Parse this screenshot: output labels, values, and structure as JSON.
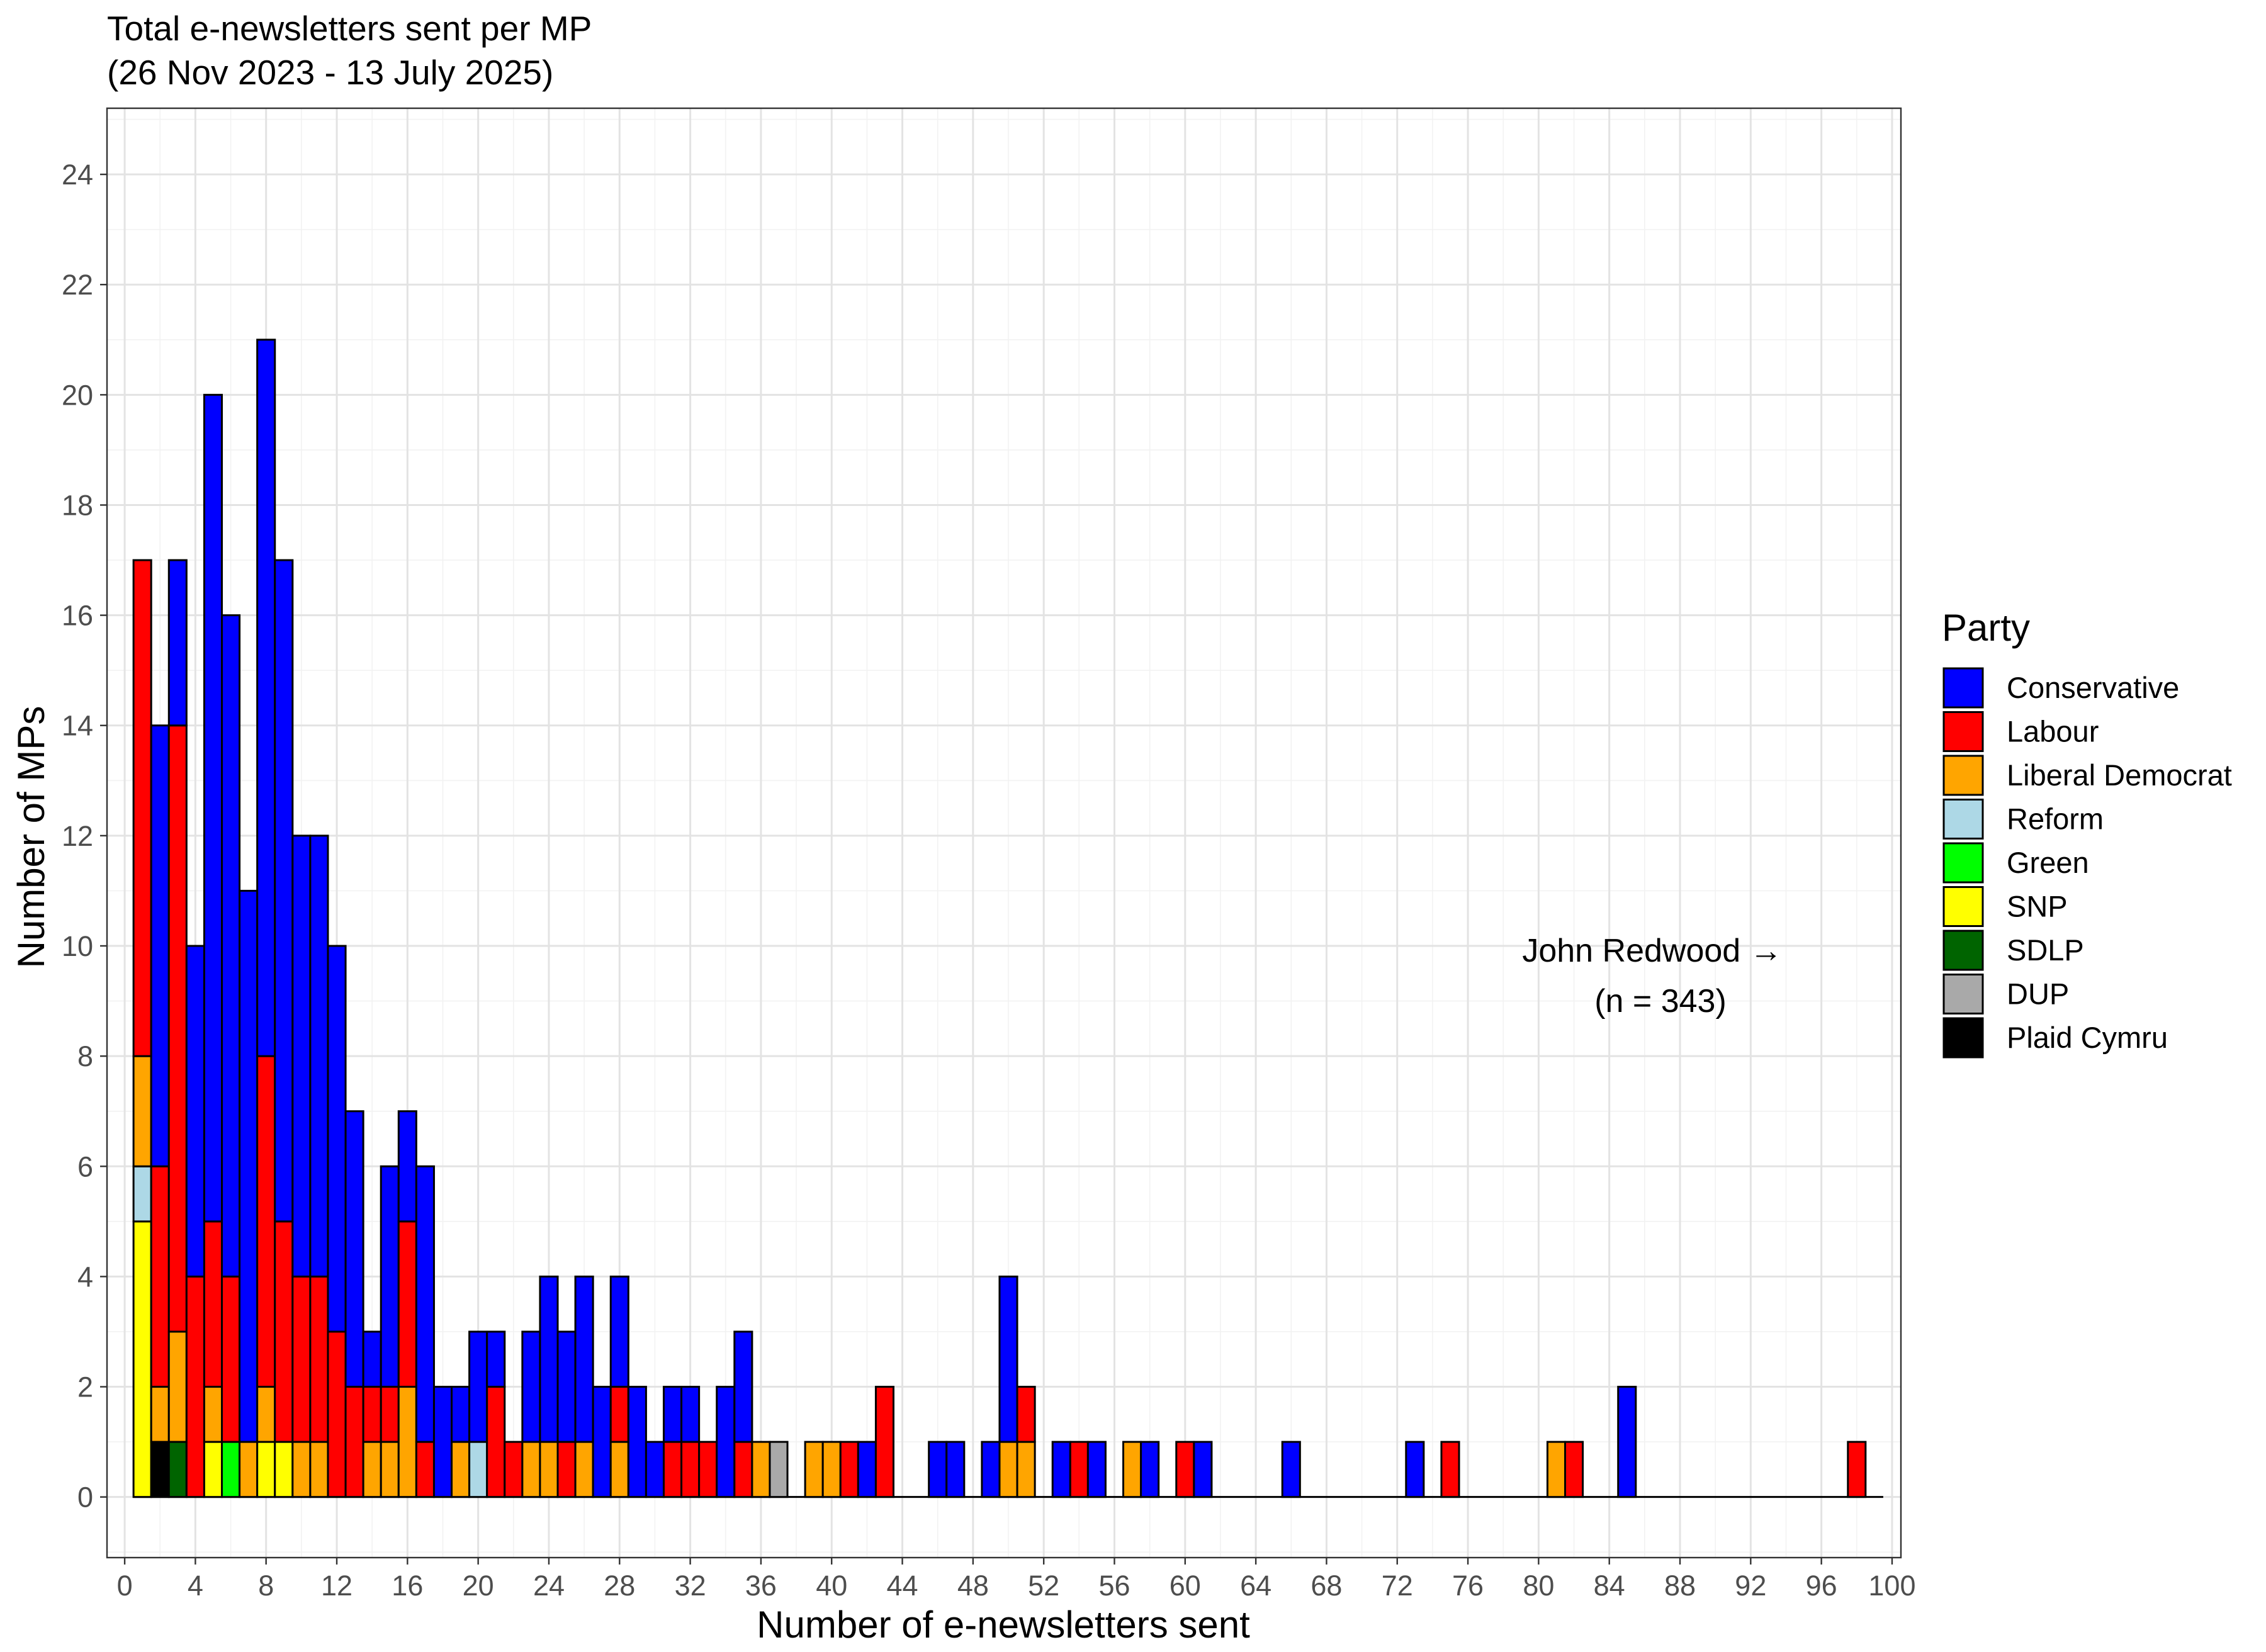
{
  "chart_data": {
    "type": "bar",
    "stacked": true,
    "title": "Total e-newsletters sent per MP",
    "subtitle": "(26 Nov 2023 - 13 July 2025)",
    "xlabel": "Number of e-newsletters sent",
    "ylabel": "Number of MPs",
    "xlim": [
      -1,
      100.5
    ],
    "ylim": [
      -1.1,
      25.2
    ],
    "x_ticks": [
      "0",
      "4",
      "8",
      "12",
      "16",
      "20",
      "24",
      "28",
      "32",
      "36",
      "40",
      "44",
      "48",
      "52",
      "56",
      "60",
      "64",
      "68",
      "72",
      "76",
      "80",
      "84",
      "88",
      "92",
      "96",
      "100"
    ],
    "y_ticks": [
      "0",
      "2",
      "4",
      "6",
      "8",
      "10",
      "12",
      "14",
      "16",
      "18",
      "20",
      "22",
      "24"
    ],
    "grid": true,
    "legend_placement": "right",
    "legend": {
      "title": "Party",
      "entries": [
        {
          "name": "Conservative",
          "color": "#0000FF"
        },
        {
          "name": "Labour",
          "color": "#FF0000"
        },
        {
          "name": "Liberal Democrat",
          "color": "#FFA500"
        },
        {
          "name": "Reform",
          "color": "#ADD8E6"
        },
        {
          "name": "Green",
          "color": "#00FF00"
        },
        {
          "name": "SNP",
          "color": "#FFFF00"
        },
        {
          "name": "SDLP",
          "color": "#006400"
        },
        {
          "name": "DUP",
          "color": "#A9A9A9"
        },
        {
          "name": "Plaid Cymru",
          "color": "#000000"
        }
      ]
    },
    "bars": [
      {
        "x": 1,
        "Labour": 9,
        "Liberal Democrat": 2,
        "Reform": 1,
        "SNP": 5
      },
      {
        "x": 2,
        "Conservative": 8,
        "Labour": 4,
        "Liberal Democrat": 1,
        "Plaid Cymru": 1
      },
      {
        "x": 3,
        "Conservative": 3,
        "Labour": 11,
        "Liberal Democrat": 2,
        "SDLP": 1
      },
      {
        "x": 4,
        "Conservative": 6,
        "Labour": 4
      },
      {
        "x": 5,
        "Conservative": 15,
        "Labour": 3,
        "Liberal Democrat": 1,
        "SNP": 1
      },
      {
        "x": 6,
        "Conservative": 12,
        "Labour": 3,
        "Green": 1
      },
      {
        "x": 7,
        "Conservative": 10,
        "Liberal Democrat": 1
      },
      {
        "x": 8,
        "Conservative": 13,
        "Labour": 6,
        "Liberal Democrat": 1,
        "SNP": 1
      },
      {
        "x": 9,
        "Conservative": 12,
        "Labour": 4,
        "SNP": 1
      },
      {
        "x": 10,
        "Conservative": 8,
        "Labour": 3,
        "Liberal Democrat": 1
      },
      {
        "x": 11,
        "Conservative": 8,
        "Labour": 3,
        "Liberal Democrat": 1
      },
      {
        "x": 12,
        "Conservative": 7,
        "Labour": 3
      },
      {
        "x": 13,
        "Conservative": 5,
        "Labour": 2
      },
      {
        "x": 14,
        "Conservative": 1,
        "Labour": 1,
        "Liberal Democrat": 1
      },
      {
        "x": 15,
        "Conservative": 4,
        "Labour": 1,
        "Liberal Democrat": 1
      },
      {
        "x": 16,
        "Conservative": 2,
        "Labour": 3,
        "Liberal Democrat": 2
      },
      {
        "x": 17,
        "Conservative": 5,
        "Labour": 1
      },
      {
        "x": 18,
        "Conservative": 2
      },
      {
        "x": 19,
        "Conservative": 1,
        "Liberal Democrat": 1
      },
      {
        "x": 20,
        "Conservative": 2,
        "Reform": 1
      },
      {
        "x": 21,
        "Conservative": 1,
        "Labour": 2
      },
      {
        "x": 22,
        "Labour": 1
      },
      {
        "x": 23,
        "Conservative": 2,
        "Liberal Democrat": 1
      },
      {
        "x": 24,
        "Conservative": 3,
        "Liberal Democrat": 1
      },
      {
        "x": 25,
        "Conservative": 2,
        "Labour": 1
      },
      {
        "x": 26,
        "Conservative": 3,
        "Liberal Democrat": 1
      },
      {
        "x": 27,
        "Conservative": 2
      },
      {
        "x": 28,
        "Conservative": 2,
        "Labour": 1,
        "Liberal Democrat": 1
      },
      {
        "x": 29,
        "Conservative": 2
      },
      {
        "x": 30,
        "Conservative": 1
      },
      {
        "x": 31,
        "Conservative": 1,
        "Labour": 1
      },
      {
        "x": 32,
        "Conservative": 1,
        "Labour": 1
      },
      {
        "x": 33,
        "Labour": 1
      },
      {
        "x": 34,
        "Conservative": 2
      },
      {
        "x": 35,
        "Conservative": 2,
        "Labour": 1
      },
      {
        "x": 36,
        "Liberal Democrat": 1
      },
      {
        "x": 37,
        "DUP": 1
      },
      {
        "x": 39,
        "Liberal Democrat": 1
      },
      {
        "x": 40,
        "Liberal Democrat": 1
      },
      {
        "x": 41,
        "Labour": 1
      },
      {
        "x": 42,
        "Conservative": 1
      },
      {
        "x": 43,
        "Labour": 2
      },
      {
        "x": 46,
        "Conservative": 1
      },
      {
        "x": 47,
        "Conservative": 1
      },
      {
        "x": 49,
        "Conservative": 1
      },
      {
        "x": 50,
        "Conservative": 3,
        "Liberal Democrat": 1
      },
      {
        "x": 51,
        "Labour": 1,
        "Liberal Democrat": 1
      },
      {
        "x": 53,
        "Conservative": 1
      },
      {
        "x": 54,
        "Labour": 1
      },
      {
        "x": 55,
        "Conservative": 1
      },
      {
        "x": 57,
        "Liberal Democrat": 1
      },
      {
        "x": 58,
        "Conservative": 1
      },
      {
        "x": 60,
        "Labour": 1
      },
      {
        "x": 61,
        "Conservative": 1
      },
      {
        "x": 66,
        "Conservative": 1
      },
      {
        "x": 73,
        "Conservative": 1
      },
      {
        "x": 75,
        "Labour": 1
      },
      {
        "x": 81,
        "Liberal Democrat": 1
      },
      {
        "x": 82,
        "Labour": 1
      },
      {
        "x": 85,
        "Conservative": 2
      },
      {
        "x": 98,
        "Labour": 1
      }
    ],
    "annotation": {
      "lines": [
        "John Redwood →",
        "(n = 343)"
      ]
    }
  }
}
